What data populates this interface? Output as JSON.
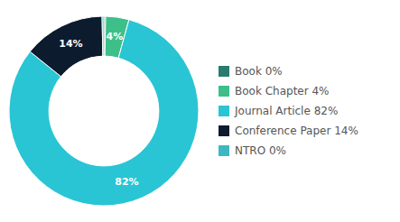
{
  "chart_data": {
    "type": "donut",
    "categories": [
      "Book 0%",
      "Book Chapter 4%",
      "Journal Article 82%",
      "Conference Paper 14%",
      "NTRO 0%"
    ],
    "values": [
      0.3,
      4,
      82,
      14,
      0.3
    ],
    "value_labels": [
      null,
      "4%",
      "82%",
      "14%",
      null
    ],
    "colors": [
      "#2b7a6f",
      "#3dbf8a",
      "#29c5d4",
      "#0d1b2e",
      "#3db8c0"
    ],
    "data_labels": true,
    "legend": "right"
  }
}
